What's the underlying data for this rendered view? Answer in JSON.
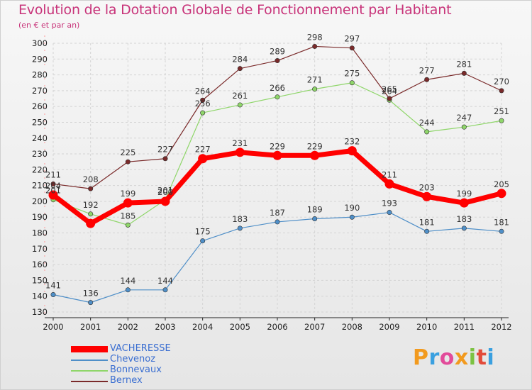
{
  "header": {
    "title": "Evolution de la Dotation Globale de Fonctionnement par Habitant",
    "subtitle": "(en € et par an)"
  },
  "brand": {
    "logo_text": "Proxiti",
    "letter_colors": [
      "#f29a1e",
      "#3aa0e0",
      "#e24b9a",
      "#f29a1e",
      "#7cc242",
      "#e24b3a",
      "#3aa0e0"
    ]
  },
  "chart_data": {
    "type": "line",
    "x": [
      "2000",
      "2001",
      "2002",
      "2003",
      "2004",
      "2005",
      "2006",
      "2007",
      "2008",
      "2009",
      "2010",
      "2011",
      "2012"
    ],
    "ylim": [
      130,
      300
    ],
    "yticks": [
      130,
      140,
      150,
      160,
      170,
      180,
      190,
      200,
      210,
      220,
      230,
      240,
      250,
      260,
      270,
      280,
      290,
      300
    ],
    "grid": true,
    "legend_position": "bottom-left",
    "series": [
      {
        "name": "Chevenoz",
        "color": "#4f8fc8",
        "width": 1.2,
        "marker": 3.2,
        "values": [
          141,
          136,
          144,
          144,
          175,
          183,
          187,
          189,
          190,
          193,
          181,
          183,
          181
        ]
      },
      {
        "name": "Bonnevaux",
        "color": "#8fd66a",
        "width": 1.2,
        "marker": 3.2,
        "values": [
          201,
          192,
          185,
          201,
          256,
          261,
          266,
          271,
          275,
          264,
          244,
          247,
          251
        ]
      },
      {
        "name": "Bernex",
        "color": "#7a2a2a",
        "width": 1.2,
        "marker": 3.2,
        "values": [
          211,
          208,
          225,
          227,
          264,
          284,
          289,
          298,
          297,
          265,
          277,
          281,
          270
        ]
      },
      {
        "name": "VACHERESSE",
        "color": "#ff0000",
        "width": 7,
        "marker": 6.5,
        "values": [
          204,
          186,
          199,
          200,
          227,
          231,
          229,
          229,
          232,
          211,
          203,
          199,
          205
        ]
      }
    ],
    "data_labels": [
      {
        "series": "Chevenoz",
        "labels": [
          "141",
          "136",
          "144",
          "144",
          "175",
          "183",
          "187",
          "189",
          "190",
          "193",
          "181",
          "183",
          "181"
        ]
      },
      {
        "series": "Bonnevaux",
        "labels": [
          "201",
          "192",
          "185",
          "201",
          "256",
          "261",
          "266",
          "271",
          "275",
          "264",
          "244",
          "247",
          "251"
        ]
      },
      {
        "series": "Bernex",
        "labels": [
          "211",
          "208",
          "225",
          "227",
          "264",
          "284",
          "289",
          "298",
          "297",
          "265",
          "277",
          "281",
          "270"
        ]
      },
      {
        "series": "VACHERESSE",
        "labels": [
          "204",
          "",
          "199",
          "200",
          "227",
          "231",
          "229",
          "229",
          "232",
          "211",
          "203",
          "199",
          "205"
        ]
      }
    ]
  },
  "legend": {
    "items": [
      {
        "label": "VACHERESSE",
        "color": "#ff0000",
        "thick": true
      },
      {
        "label": "Chevenoz",
        "color": "#4f8fc8",
        "thick": false
      },
      {
        "label": "Bonnevaux",
        "color": "#8fd66a",
        "thick": false
      },
      {
        "label": "Bernex",
        "color": "#7a2a2a",
        "thick": false
      }
    ]
  }
}
